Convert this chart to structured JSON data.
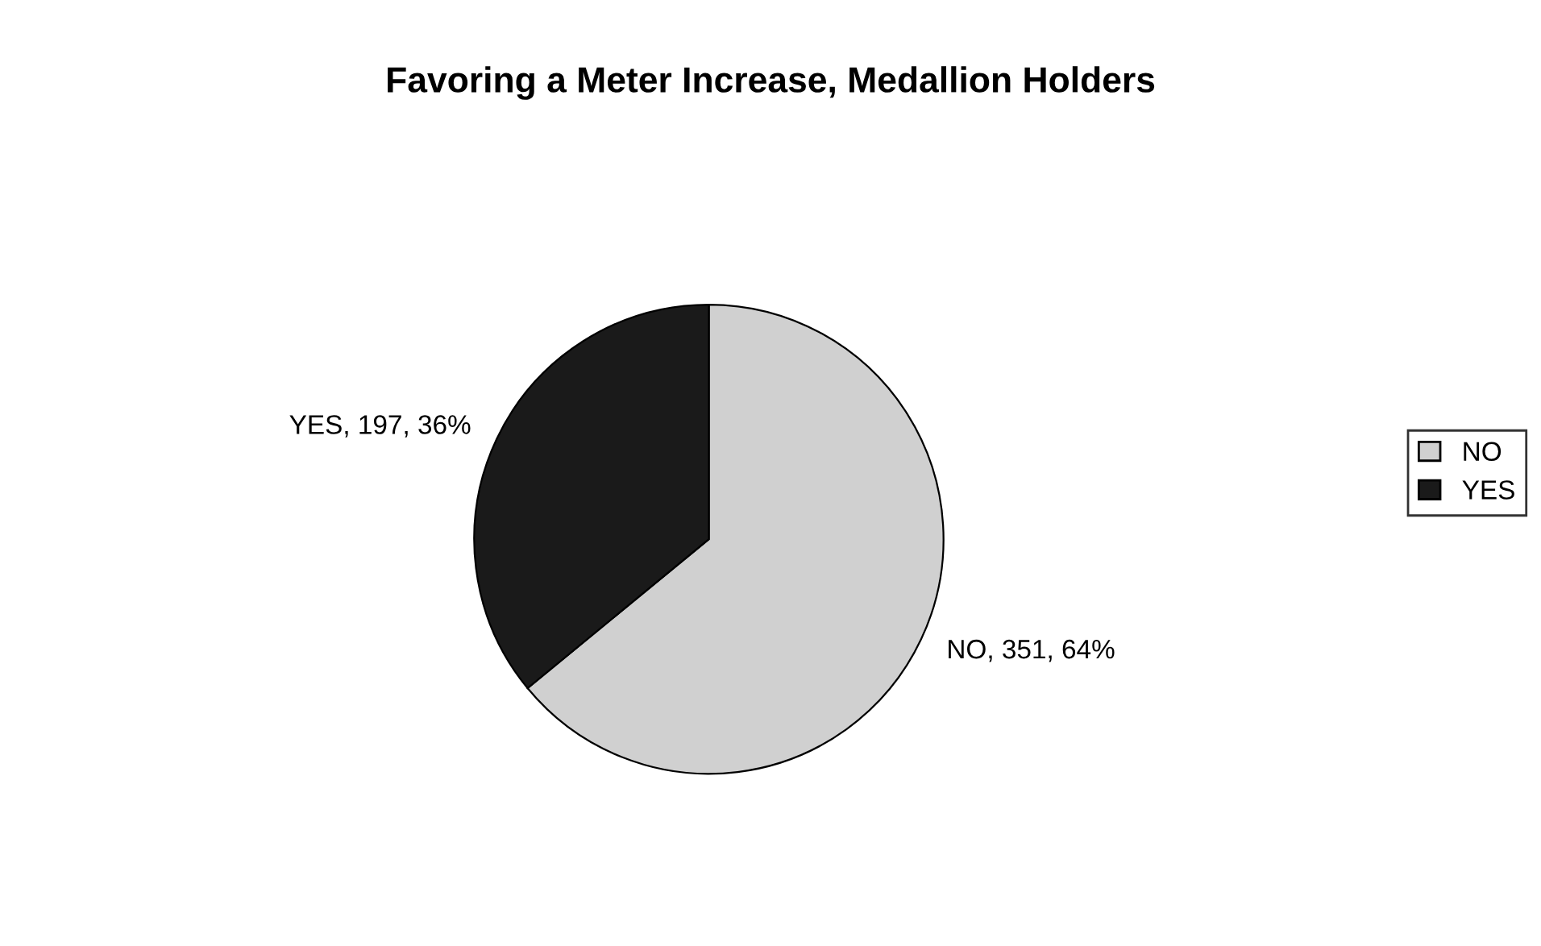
{
  "chart_data": {
    "type": "pie",
    "title": "Favoring a Meter Increase, Medallion Holders",
    "categories": [
      "NO",
      "YES"
    ],
    "values": [
      351,
      197
    ],
    "colors": [
      "#d0d0d0",
      "#1a1a1a"
    ],
    "value_labels": [
      "NO, 351, 64%",
      "YES, 197, 36%"
    ],
    "legend": "right"
  }
}
